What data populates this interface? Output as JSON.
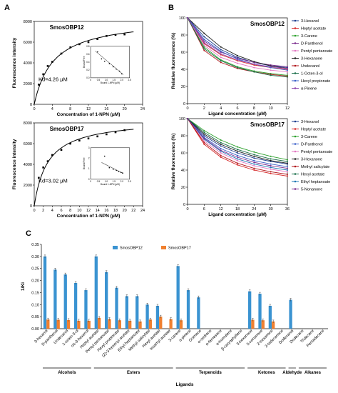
{
  "panel_labels": {
    "a": "A",
    "b": "B",
    "c": "C"
  },
  "chart_data": [
    {
      "id": "A1",
      "type": "scatter",
      "title": "SmosOBP12",
      "xlabel": "Concentration of 1-NPN (μM)",
      "ylabel": "Fluorescence intensity",
      "xlim": [
        0,
        24
      ],
      "ylim": [
        0,
        8000
      ],
      "xticks": [
        0,
        4,
        8,
        12,
        16,
        20,
        24
      ],
      "yticks": [
        0,
        2000,
        4000,
        6000,
        8000
      ],
      "annotation": "Kd=4.26 μM",
      "points": {
        "x": [
          1,
          2,
          3,
          4,
          6,
          8,
          10,
          12,
          14,
          16,
          18,
          20
        ],
        "y": [
          1900,
          2900,
          3700,
          4100,
          4900,
          5500,
          5800,
          6000,
          6300,
          6600,
          6700,
          6750
        ]
      },
      "fit": {
        "model": "saturation",
        "bmax": 8350,
        "kd": 4.26,
        "xmax": 22
      },
      "inset": {
        "xlabel": "Bound 1-NPN (μM)",
        "ylabel": "Bound/Free",
        "xlim": [
          0,
          2.5
        ],
        "ylim": [
          0,
          0.8
        ],
        "xticks": [
          "0",
          "0.5",
          "1.0",
          "1.5",
          "2.0",
          "2.5"
        ],
        "yticks": [
          "0.0",
          "0.2",
          "0.4",
          "0.6",
          "0.8"
        ],
        "points": {
          "x": [
            0.45,
            0.7,
            0.9,
            1.2,
            1.45,
            1.65,
            1.85,
            2.0
          ],
          "y": [
            0.66,
            0.48,
            0.42,
            0.36,
            0.28,
            0.22,
            0.17,
            0.1
          ]
        },
        "line": [
          [
            0.3,
            0.68
          ],
          [
            2.1,
            0.08
          ]
        ]
      }
    },
    {
      "id": "A2",
      "type": "scatter",
      "title": "SmosOBP17",
      "xlabel": "Concentration of 1-NPN (μM)",
      "ylabel": "Fluorescence intensity",
      "xlim": [
        0,
        24
      ],
      "ylim": [
        0,
        8000
      ],
      "xticks": [
        0,
        2,
        4,
        6,
        8,
        10,
        12,
        14,
        16,
        18,
        20,
        22,
        24
      ],
      "yticks": [
        0,
        2000,
        4000,
        6000,
        8000
      ],
      "annotation": "Kd=3.02 μM",
      "points": {
        "x": [
          1,
          2,
          3,
          4,
          6,
          8,
          10,
          12,
          14,
          16,
          18,
          20
        ],
        "y": [
          2700,
          3700,
          4300,
          4900,
          5400,
          6000,
          6300,
          6500,
          6700,
          6900,
          7100,
          7300
        ]
      },
      "fit": {
        "model": "saturation",
        "bmax": 8400,
        "kd": 3.02,
        "xmax": 22
      },
      "inset": {
        "xlabel": "Bound 1-NPN (μM)",
        "ylabel": "Bound/Free",
        "xlim": [
          0,
          2.5
        ],
        "ylim": [
          0,
          3
        ],
        "xticks": [
          "0",
          "0.5",
          "1.0",
          "1.5",
          "2.0",
          "2.5"
        ],
        "yticks": [
          "0",
          "1",
          "2",
          "3"
        ],
        "points": {
          "x": [
            0.9,
            1.2,
            1.45,
            1.65,
            1.8,
            1.95,
            2.05
          ],
          "y": [
            2.2,
            1.1,
            0.95,
            0.85,
            0.75,
            0.65,
            0.6
          ]
        },
        "line": [
          [
            0.7,
            1.6
          ],
          [
            2.1,
            0.55
          ]
        ]
      }
    },
    {
      "id": "B1",
      "type": "line",
      "title": "SmosOBP12",
      "xlabel": "Ligand concentration (μM)",
      "ylabel": "Relative fluorescence (%)",
      "xlim": [
        0,
        12
      ],
      "ylim": [
        0,
        100
      ],
      "xticks": [
        0,
        2,
        4,
        6,
        8,
        10,
        12
      ],
      "yticks": [
        0,
        20,
        40,
        60,
        80,
        100
      ],
      "x": [
        0,
        2,
        4,
        6,
        8,
        10,
        12
      ],
      "series": [
        {
          "name": "3-Hexanol",
          "color": "#1f3f8f",
          "values": [
            100,
            78,
            63,
            54,
            48,
            44,
            42
          ]
        },
        {
          "name": "Heptyl acetate",
          "color": "#d62728",
          "values": [
            100,
            70,
            57,
            50,
            45,
            42,
            40
          ]
        },
        {
          "name": "3-Carene",
          "color": "#2ca02c",
          "values": [
            100,
            66,
            51,
            43,
            38,
            35,
            33
          ]
        },
        {
          "name": "D-Panthenol",
          "color": "#7b2d8e",
          "values": [
            100,
            73,
            60,
            53,
            48,
            45,
            43
          ]
        },
        {
          "name": "Pentyl pentanoate",
          "color": "#e377c2",
          "values": [
            100,
            68,
            54,
            47,
            42,
            39,
            37
          ]
        },
        {
          "name": "3-Hexanone",
          "color": "#222222",
          "values": [
            100,
            82,
            66,
            56,
            49,
            44,
            41
          ]
        },
        {
          "name": "Undecanol",
          "color": "#b0151a",
          "values": [
            100,
            62,
            48,
            41,
            37,
            34,
            32
          ]
        },
        {
          "name": "1-Octen-3-ol",
          "color": "#1a6f4a",
          "values": [
            100,
            64,
            50,
            42,
            37,
            33,
            31
          ]
        },
        {
          "name": "Hexyl propionate",
          "color": "#3a5fc8",
          "values": [
            100,
            75,
            61,
            52,
            46,
            42,
            39
          ]
        },
        {
          "name": "α-Pinene",
          "color": "#8e44ad",
          "values": [
            100,
            71,
            58,
            51,
            46,
            43,
            41
          ]
        }
      ]
    },
    {
      "id": "B2",
      "type": "line",
      "title": "SmosOBP17",
      "xlabel": "Ligand concentration (μM)",
      "ylabel": "Relative fluorescence (%)",
      "xlim": [
        0,
        36
      ],
      "ylim": [
        0,
        100
      ],
      "xticks": [
        0,
        6,
        12,
        18,
        24,
        30,
        36
      ],
      "yticks": [
        0,
        20,
        40,
        60,
        80,
        100
      ],
      "x": [
        0,
        6,
        12,
        18,
        24,
        30,
        36
      ],
      "series": [
        {
          "name": "3-Hexanol",
          "color": "#1f3f8f",
          "values": [
            100,
            80,
            68,
            60,
            54,
            50,
            47
          ]
        },
        {
          "name": "Heptyl acetate",
          "color": "#d62728",
          "values": [
            100,
            70,
            55,
            46,
            40,
            36,
            33
          ]
        },
        {
          "name": "3-Carene",
          "color": "#2ca02c",
          "values": [
            100,
            86,
            75,
            67,
            61,
            56,
            52
          ]
        },
        {
          "name": "D-Panthenol",
          "color": "#3a5fc8",
          "values": [
            100,
            78,
            65,
            57,
            51,
            47,
            44
          ]
        },
        {
          "name": "Pentyl pentanoate",
          "color": "#e377c2",
          "values": [
            100,
            74,
            60,
            51,
            45,
            41,
            38
          ]
        },
        {
          "name": "3-Hexanone",
          "color": "#222222",
          "values": [
            100,
            82,
            70,
            62,
            56,
            51,
            48
          ]
        },
        {
          "name": "Methyl salicylate",
          "color": "#b0151a",
          "values": [
            100,
            72,
            57,
            48,
            42,
            38,
            35
          ]
        },
        {
          "name": "Hexyl acetate",
          "color": "#1a6f4a",
          "values": [
            100,
            84,
            72,
            64,
            58,
            53,
            50
          ]
        },
        {
          "name": "Ethyl heptanoate",
          "color": "#1f77b4",
          "values": [
            100,
            76,
            62,
            53,
            47,
            43,
            40
          ]
        },
        {
          "name": "5-Nonanone",
          "color": "#7b2d8e",
          "values": [
            100,
            77,
            63,
            55,
            49,
            45,
            42
          ]
        }
      ]
    },
    {
      "id": "C",
      "type": "bar",
      "title": "",
      "xlabel": "Ligands",
      "ylabel": "1/Ki",
      "ylim": [
        0,
        0.35
      ],
      "yticks": [
        "0.00",
        "0.05",
        "0.10",
        "0.15",
        "0.20",
        "0.25",
        "0.30",
        "0.35"
      ],
      "categories": [
        "3-hexanol",
        "D-panthenol",
        "Undecanol",
        "1-octen-3-ol",
        "cis-3-hexenol",
        "Heptyl acetate",
        "Pentyl pentanoate",
        "Hexyl propionate",
        "(Z)-3-hexenyl acetate",
        "Ethyl heptanoate",
        "Methyl salicylate",
        "Hexyl acetate",
        "Isoamyl acetate",
        "3-carene",
        "α-pinene",
        "Ocimene",
        "α-cedrene",
        "α-farnesene",
        "α-humulene",
        "β-caryophyllene",
        "3-hexanone",
        "5-nonanone",
        "2-hexanone",
        "2-tridecanone",
        "Dodecanal",
        "Dodecane",
        "Tridecane",
        "Pentadecane"
      ],
      "series": [
        {
          "name": "SmosOBP12",
          "color": "#3a93d1",
          "values": [
            0.3,
            0.245,
            0.225,
            0.19,
            0.16,
            0.3,
            0.235,
            0.17,
            0.135,
            0.135,
            0.1,
            0.095,
            0,
            0.26,
            0.16,
            0.13,
            0,
            0,
            0,
            0,
            0.155,
            0.145,
            0.095,
            0,
            0.12,
            0,
            0,
            0
          ]
        },
        {
          "name": "SmosOBP17",
          "color": "#f08030",
          "values": [
            0.038,
            0.037,
            0.036,
            0.033,
            0.033,
            0.045,
            0.04,
            0.035,
            0.033,
            0.03,
            0.038,
            0.05,
            0.04,
            0.035,
            0,
            0,
            0,
            0,
            0,
            0,
            0.037,
            0.035,
            0.03,
            0,
            0,
            0,
            0,
            0
          ]
        }
      ],
      "groups": [
        {
          "name": "Alcohols",
          "from": 0,
          "to": 4
        },
        {
          "name": "Esters",
          "from": 5,
          "to": 12
        },
        {
          "name": "Terpenoids",
          "from": 13,
          "to": 19
        },
        {
          "name": "Ketones",
          "from": 20,
          "to": 23
        },
        {
          "name": "Aldehyde",
          "from": 24,
          "to": 24
        },
        {
          "name": "Alkanes",
          "from": 25,
          "to": 27
        }
      ]
    }
  ]
}
